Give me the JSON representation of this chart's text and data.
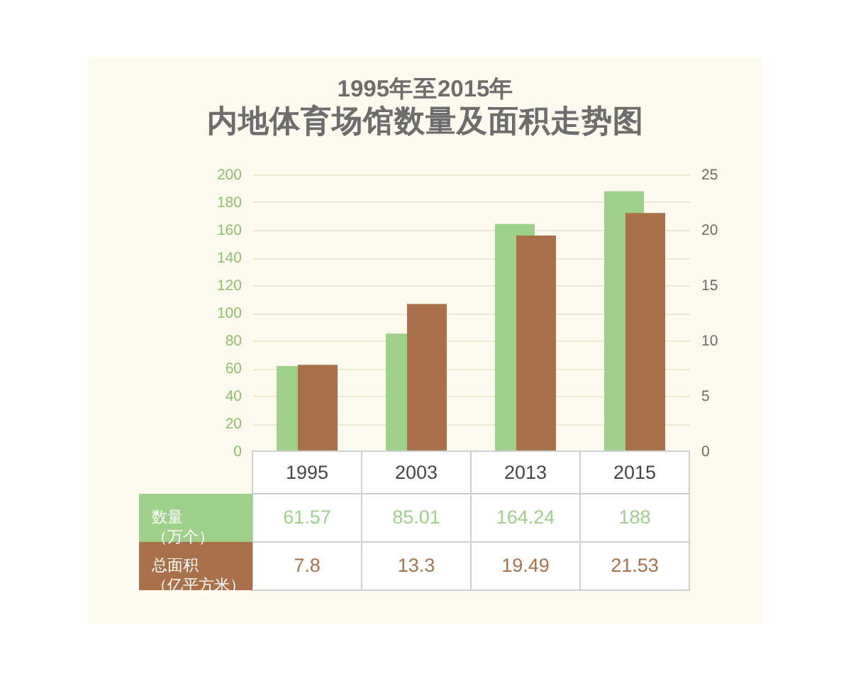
{
  "chart_data": {
    "type": "bar",
    "title": "1995年至2015年",
    "subtitle": "内地体育场馆数量及面积走势图",
    "categories": [
      "1995",
      "2003",
      "2013",
      "2015"
    ],
    "series": [
      {
        "name": "数量（万个）",
        "color": "#9ed08b",
        "values": [
          61.57,
          85.01,
          164.24,
          188
        ]
      },
      {
        "name": "总面积（亿平方米）",
        "color": "#a8714a",
        "values": [
          7.8,
          13.3,
          19.49,
          21.53
        ],
        "axis": "y2"
      }
    ],
    "ylim": [
      0,
      200
    ],
    "yticks": [
      0,
      20,
      40,
      60,
      80,
      100,
      120,
      140,
      160,
      180,
      200
    ],
    "y2lim": [
      0,
      25
    ],
    "y2ticks": [
      0,
      5,
      10,
      15,
      20,
      25
    ],
    "grid": "y",
    "legend": "bottom left",
    "data_labels": true
  }
}
